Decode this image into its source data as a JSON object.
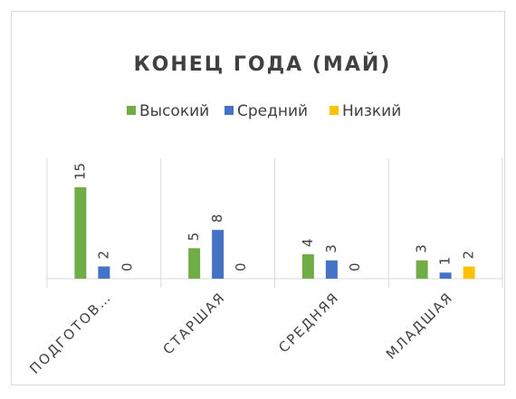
{
  "chart_data": {
    "type": "bar",
    "title": "КОНЕЦ ГОДА (МАЙ)",
    "categories": [
      "ПОДГОТОВ…",
      "СТАРШАЯ",
      "СРЕДНЯЯ",
      "МЛАДШАЯ"
    ],
    "series": [
      {
        "name": "Высокий",
        "color": "#70ad47",
        "values": [
          15,
          5,
          4,
          3
        ]
      },
      {
        "name": "Средний",
        "color": "#4472c4",
        "values": [
          2,
          8,
          3,
          1
        ]
      },
      {
        "name": "Низкий",
        "color": "#ffc000",
        "values": [
          0,
          0,
          0,
          2
        ]
      }
    ],
    "ylim": [
      0,
      15
    ]
  }
}
